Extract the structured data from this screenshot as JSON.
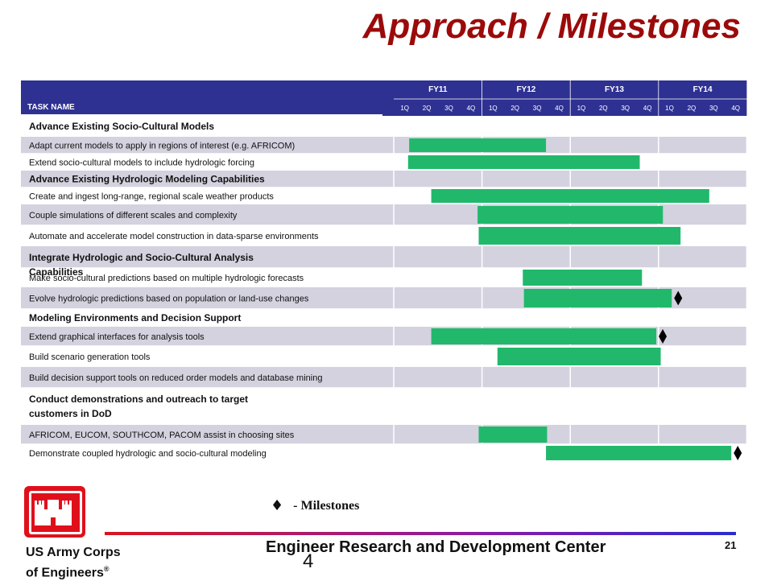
{
  "page": {
    "title": "Approach / Milestones",
    "page_number": "21",
    "stray_number": "4"
  },
  "table": {
    "task_header": "TASK NAME"
  },
  "chart_data": {
    "type": "gantt",
    "title": "Approach / Milestones",
    "fiscal_years": [
      "FY11",
      "FY12",
      "FY13",
      "FY14"
    ],
    "quarters": [
      "1Q",
      "2Q",
      "3Q",
      "4Q",
      "1Q",
      "2Q",
      "3Q",
      "4Q",
      "1Q",
      "2Q",
      "3Q",
      "4Q",
      "1Q",
      "2Q",
      "3Q",
      "4Q"
    ],
    "bar_color": "#21B86B",
    "rows": [
      {
        "name": "Advance Existing Socio-Cultural Models",
        "group": true
      },
      {
        "name": "Adapt current models to apply in regions of interest (e.g. AFRICOM)",
        "start": 0.7,
        "end": 6.9,
        "milestone": false
      },
      {
        "name": "Extend socio-cultural models to include hydrologic forcing",
        "start": 0.65,
        "end": 11.15,
        "milestone": false
      },
      {
        "name": "Advance Existing Hydrologic Modeling Capabilities",
        "group": true
      },
      {
        "name": "Create and ingest long-range, regional scale weather products",
        "start": 1.7,
        "end": 14.3,
        "milestone": false
      },
      {
        "name": "Couple simulations of different scales and complexity",
        "start": 3.8,
        "end": 12.2,
        "milestone": false
      },
      {
        "name": "Automate and accelerate model construction in data-sparse environments",
        "start": 3.85,
        "end": 13.0,
        "milestone": false
      },
      {
        "name": "Integrate Hydrologic and Socio-Cultural Analysis Capabilities",
        "group": true
      },
      {
        "name": "Make socio-cultural predictions based on multiple hydrologic forecasts",
        "start": 5.85,
        "end": 11.25,
        "milestone": false
      },
      {
        "name": "Evolve hydrologic predictions based on population or land-use changes",
        "start": 5.9,
        "end": 12.6,
        "milestone": true
      },
      {
        "name": "Modeling Environments and Decision Support",
        "group": true
      },
      {
        "name": "Extend graphical interfaces for analysis tools",
        "start": 1.7,
        "end": 11.9,
        "milestone": true
      },
      {
        "name": "Build scenario generation tools",
        "start": 4.7,
        "end": 12.1,
        "milestone": false
      },
      {
        "name": "Build decision support tools on reduced order models and database mining",
        "group": false
      },
      {
        "name": "Conduct demonstrations and outreach to target customers in DoD",
        "group": true
      },
      {
        "name": "AFRICOM, EUCOM, SOUTHCOM, PACOM assist in choosing sites",
        "start": 3.85,
        "end": 6.95,
        "milestone": false
      },
      {
        "name": "Demonstrate coupled hydrologic and socio-cultural modeling",
        "start": 6.9,
        "end": 15.3,
        "milestone": true
      }
    ]
  },
  "legend": {
    "symbol": "♦",
    "label": "- Milestones"
  },
  "footer": {
    "org_line1": "US Army Corps",
    "org_line2": "of Engineers",
    "registered": "®",
    "center": "Engineer Research and Development Center"
  },
  "colors": {
    "title": "#9B0A0A",
    "header": "#2E3192",
    "row_shade": "#D3D2DE",
    "bar": "#21B86B",
    "logo": "#E0101B"
  }
}
